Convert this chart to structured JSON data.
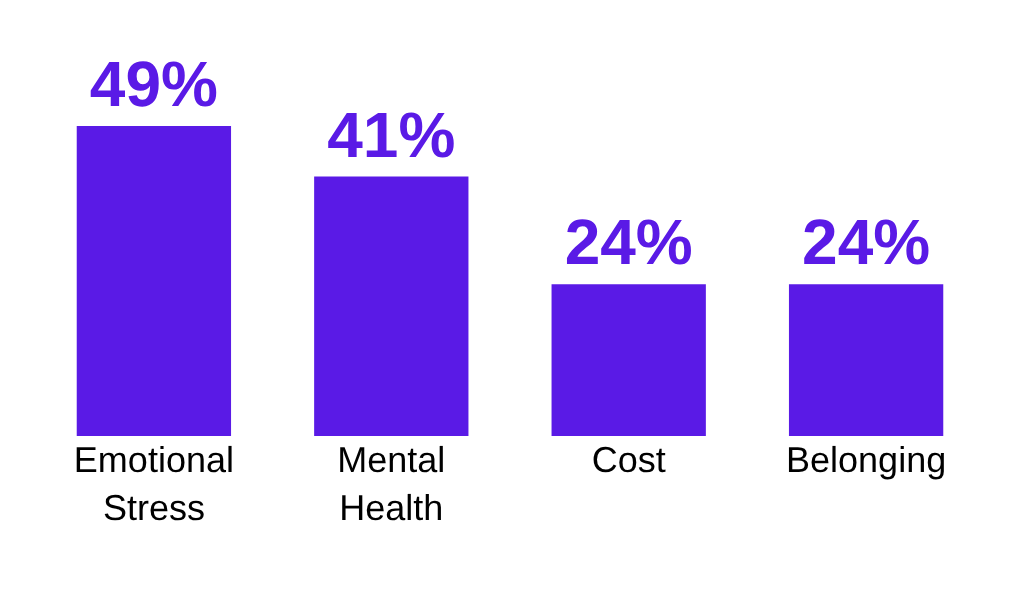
{
  "chart_data": {
    "type": "bar",
    "categories": [
      "Emotional Stress",
      "Mental Health",
      "Cost",
      "Belonging"
    ],
    "values": [
      49,
      41,
      24,
      24
    ],
    "value_labels": [
      "49%",
      "41%",
      "24%",
      "24%"
    ],
    "color": "#5a1ae6",
    "grid": false
  }
}
